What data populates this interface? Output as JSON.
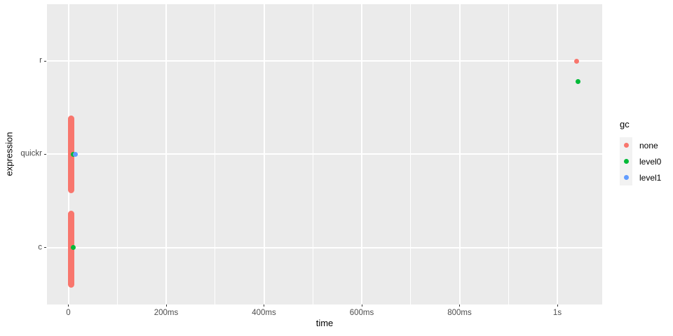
{
  "chart_data": {
    "type": "scatter",
    "title": "",
    "xlabel": "time",
    "ylabel": "expression",
    "x_ticks": [
      "0",
      "200ms",
      "400ms",
      "600ms",
      "800ms",
      "1s"
    ],
    "x_tick_values_ms": [
      0,
      200,
      400,
      600,
      800,
      1000
    ],
    "x_minor_tick_values_ms": [
      100,
      300,
      500,
      700,
      900,
      1100
    ],
    "x_range_ms": [
      -44,
      1092
    ],
    "y_categories": [
      "r",
      "quickr",
      "c"
    ],
    "grid": true,
    "legend_position": "right",
    "legend": {
      "title": "gc"
    },
    "series": [
      {
        "name": "none",
        "color": "#F8766D"
      },
      {
        "name": "level0",
        "color": "#00BA38"
      },
      {
        "name": "level1",
        "color": "#619CFF"
      }
    ],
    "clusters": [
      {
        "series": "none",
        "category": "quickr",
        "time_ms": 6,
        "time_spread_ms": 2,
        "count": "many overlapping jittered points",
        "y_jitter_span": 0.83,
        "y_offset": 0
      },
      {
        "series": "none",
        "category": "c",
        "time_ms": 6,
        "time_spread_ms": 2,
        "count": "many overlapping jittered points",
        "y_jitter_span": 0.83,
        "y_offset": 0.02
      }
    ],
    "points": [
      {
        "series": "none",
        "category": "r",
        "time_ms": 1040,
        "y_offset": 0
      },
      {
        "series": "level0",
        "category": "r",
        "time_ms": 1043,
        "y_offset": 0.22
      },
      {
        "series": "level0",
        "category": "quickr",
        "time_ms": 10,
        "y_offset": 0
      },
      {
        "series": "level0",
        "category": "c",
        "time_ms": 10,
        "y_offset": 0
      },
      {
        "series": "level1",
        "category": "quickr",
        "time_ms": 15,
        "y_offset": 0
      }
    ],
    "colors": {
      "panel_background": "#EBEBEB",
      "grid_major": "#FFFFFF",
      "grid_minor": "#FFFFFF",
      "axis_text": "#4D4D4D",
      "axis_title": "#000000",
      "legend_key_background": "#F2F2F2",
      "tick_marks": "#333333",
      "figure_background": "#FFFFFF"
    }
  }
}
